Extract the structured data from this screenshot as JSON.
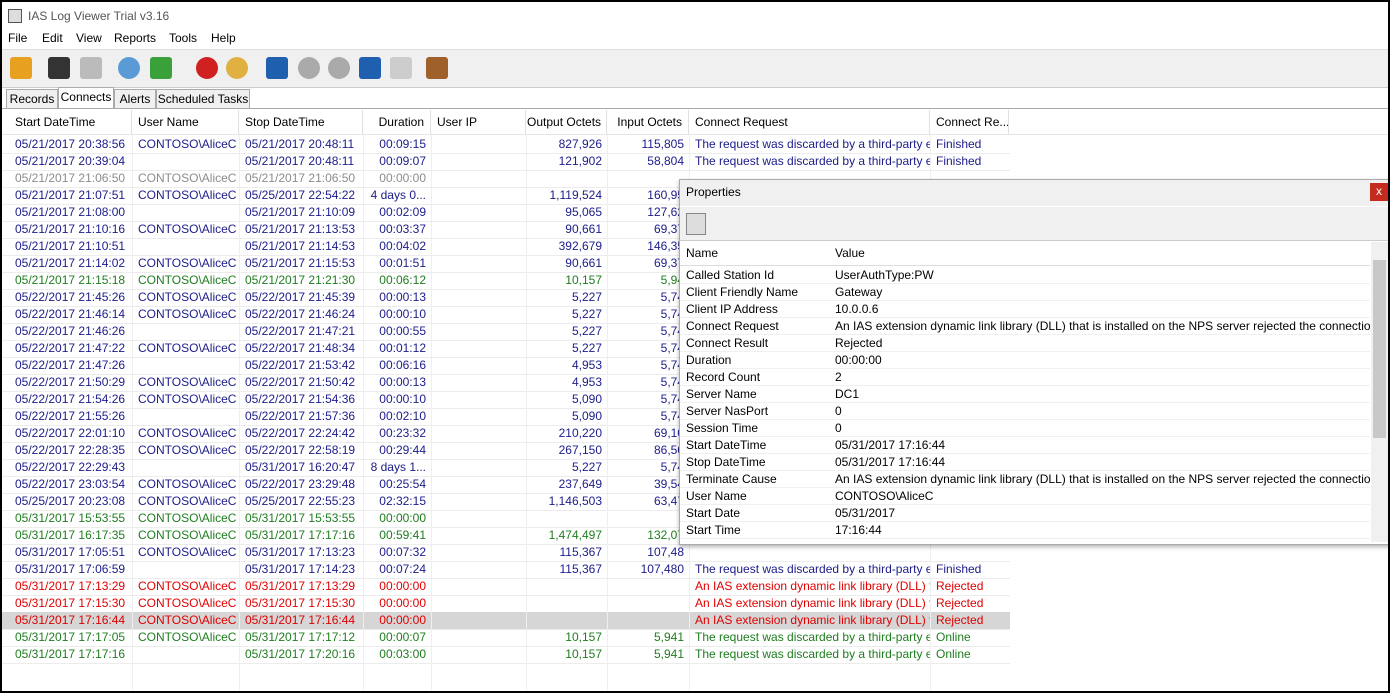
{
  "window": {
    "title": "IAS Log Viewer Trial v3.16"
  },
  "menu": [
    "File",
    "Edit",
    "View",
    "Reports",
    "Tools",
    "Help"
  ],
  "tabs": [
    "Records",
    "Connects",
    "Alerts",
    "Scheduled Tasks"
  ],
  "active_tab": 1,
  "table": {
    "columns": [
      "Start DateTime",
      "User Name",
      "Stop DateTime",
      "Duration",
      "User IP",
      "Output Octets",
      "Input Octets",
      "Connect Request",
      "Connect Re..."
    ],
    "rows": [
      {
        "color": "#1c1c8a",
        "start": "05/21/2017 20:38:56",
        "user": "CONTOSO\\AliceC",
        "stop": "05/21/2017 20:48:11",
        "duration": "00:09:15",
        "output": "827,926",
        "input": "115,805",
        "request": "The request was discarded by a third-party ext...",
        "result": "Finished"
      },
      {
        "color": "#1c1c8a",
        "start": "05/21/2017 20:39:04",
        "stop": "05/21/2017 20:48:11",
        "duration": "00:09:07",
        "output": "121,902",
        "input": "58,804",
        "request": "The request was discarded by a third-party ext...",
        "result": "Finished"
      },
      {
        "color": "#8c8c8c",
        "start": "05/21/2017 21:06:50",
        "user": "CONTOSO\\AliceC",
        "stop": "05/21/2017 21:06:50",
        "duration": "00:00:00"
      },
      {
        "color": "#1c1c8a",
        "start": "05/21/2017 21:07:51",
        "user": "CONTOSO\\AliceC",
        "stop": "05/25/2017 22:54:22",
        "duration": "4 days 0...",
        "output": "1,119,524",
        "input": "160,95"
      },
      {
        "color": "#1c1c8a",
        "start": "05/21/2017 21:08:00",
        "stop": "05/21/2017 21:10:09",
        "duration": "00:02:09",
        "output": "95,065",
        "input": "127,62"
      },
      {
        "color": "#1c1c8a",
        "start": "05/21/2017 21:10:16",
        "user": "CONTOSO\\AliceC",
        "stop": "05/21/2017 21:13:53",
        "duration": "00:03:37",
        "output": "90,661",
        "input": "69,37"
      },
      {
        "color": "#1c1c8a",
        "start": "05/21/2017 21:10:51",
        "stop": "05/21/2017 21:14:53",
        "duration": "00:04:02",
        "output": "392,679",
        "input": "146,35"
      },
      {
        "color": "#1c1c8a",
        "start": "05/21/2017 21:14:02",
        "user": "CONTOSO\\AliceC",
        "stop": "05/21/2017 21:15:53",
        "duration": "00:01:51",
        "output": "90,661",
        "input": "69,37"
      },
      {
        "color": "#1f7d1f",
        "start": "05/21/2017 21:15:18",
        "user": "CONTOSO\\AliceC",
        "stop": "05/21/2017 21:21:30",
        "duration": "00:06:12",
        "output": "10,157",
        "input": "5,94"
      },
      {
        "color": "#1c1c8a",
        "start": "05/22/2017 21:45:26",
        "user": "CONTOSO\\AliceC",
        "stop": "05/22/2017 21:45:39",
        "duration": "00:00:13",
        "output": "5,227",
        "input": "5,74"
      },
      {
        "color": "#1c1c8a",
        "start": "05/22/2017 21:46:14",
        "user": "CONTOSO\\AliceC",
        "stop": "05/22/2017 21:46:24",
        "duration": "00:00:10",
        "output": "5,227",
        "input": "5,74"
      },
      {
        "color": "#1c1c8a",
        "start": "05/22/2017 21:46:26",
        "stop": "05/22/2017 21:47:21",
        "duration": "00:00:55",
        "output": "5,227",
        "input": "5,74"
      },
      {
        "color": "#1c1c8a",
        "start": "05/22/2017 21:47:22",
        "user": "CONTOSO\\AliceC",
        "stop": "05/22/2017 21:48:34",
        "duration": "00:01:12",
        "output": "5,227",
        "input": "5,74"
      },
      {
        "color": "#1c1c8a",
        "start": "05/22/2017 21:47:26",
        "stop": "05/22/2017 21:53:42",
        "duration": "00:06:16",
        "output": "4,953",
        "input": "5,74"
      },
      {
        "color": "#1c1c8a",
        "start": "05/22/2017 21:50:29",
        "user": "CONTOSO\\AliceC",
        "stop": "05/22/2017 21:50:42",
        "duration": "00:00:13",
        "output": "4,953",
        "input": "5,74"
      },
      {
        "color": "#1c1c8a",
        "start": "05/22/2017 21:54:26",
        "user": "CONTOSO\\AliceC",
        "stop": "05/22/2017 21:54:36",
        "duration": "00:00:10",
        "output": "5,090",
        "input": "5,74"
      },
      {
        "color": "#1c1c8a",
        "start": "05/22/2017 21:55:26",
        "stop": "05/22/2017 21:57:36",
        "duration": "00:02:10",
        "output": "5,090",
        "input": "5,74"
      },
      {
        "color": "#1c1c8a",
        "start": "05/22/2017 22:01:10",
        "user": "CONTOSO\\AliceC",
        "stop": "05/22/2017 22:24:42",
        "duration": "00:23:32",
        "output": "210,220",
        "input": "69,10"
      },
      {
        "color": "#1c1c8a",
        "start": "05/22/2017 22:28:35",
        "user": "CONTOSO\\AliceC",
        "stop": "05/22/2017 22:58:19",
        "duration": "00:29:44",
        "output": "267,150",
        "input": "86,50"
      },
      {
        "color": "#1c1c8a",
        "start": "05/22/2017 22:29:43",
        "stop": "05/31/2017 16:20:47",
        "duration": "8 days 1...",
        "output": "5,227",
        "input": "5,74"
      },
      {
        "color": "#1c1c8a",
        "start": "05/22/2017 23:03:54",
        "user": "CONTOSO\\AliceC",
        "stop": "05/22/2017 23:29:48",
        "duration": "00:25:54",
        "output": "237,649",
        "input": "39,54"
      },
      {
        "color": "#1c1c8a",
        "start": "05/25/2017 20:23:08",
        "user": "CONTOSO\\AliceC",
        "stop": "05/25/2017 22:55:23",
        "duration": "02:32:15",
        "output": "1,146,503",
        "input": "63,47"
      },
      {
        "color": "#1f7d1f",
        "start": "05/31/2017 15:53:55",
        "user": "CONTOSO\\AliceC",
        "stop": "05/31/2017 15:53:55",
        "duration": "00:00:00"
      },
      {
        "color": "#1f7d1f",
        "start": "05/31/2017 16:17:35",
        "user": "CONTOSO\\AliceC",
        "stop": "05/31/2017 17:17:16",
        "duration": "00:59:41",
        "output": "1,474,497",
        "input": "132,07"
      },
      {
        "color": "#1c1c8a",
        "start": "05/31/2017 17:05:51",
        "user": "CONTOSO\\AliceC",
        "stop": "05/31/2017 17:13:23",
        "duration": "00:07:32",
        "output": "115,367",
        "input": "107,48"
      },
      {
        "color": "#1c1c8a",
        "start": "05/31/2017 17:06:59",
        "stop": "05/31/2017 17:14:23",
        "duration": "00:07:24",
        "output": "115,367",
        "input": "107,480",
        "request": "The request was discarded by a third-party ext...",
        "result": "Finished"
      },
      {
        "color": "#e00000",
        "start": "05/31/2017 17:13:29",
        "user": "CONTOSO\\AliceC",
        "stop": "05/31/2017 17:13:29",
        "duration": "00:00:00",
        "request": "An IAS extension dynamic link library (DLL) th...",
        "result": "Rejected"
      },
      {
        "color": "#e00000",
        "start": "05/31/2017 17:15:30",
        "user": "CONTOSO\\AliceC",
        "stop": "05/31/2017 17:15:30",
        "duration": "00:00:00",
        "request": "An IAS extension dynamic link library (DLL) th...",
        "result": "Rejected"
      },
      {
        "color": "#e00000",
        "selected": true,
        "start": "05/31/2017 17:16:44",
        "user": "CONTOSO\\AliceC",
        "stop": "05/31/2017 17:16:44",
        "duration": "00:00:00",
        "request": "An IAS extension dynamic link library (DLL) th...",
        "result": "Rejected"
      },
      {
        "color": "#1f7d1f",
        "start": "05/31/2017 17:17:05",
        "user": "CONTOSO\\AliceC",
        "stop": "05/31/2017 17:17:12",
        "duration": "00:00:07",
        "output": "10,157",
        "input": "5,941",
        "request": "The request was discarded by a third-party ext...",
        "result": "Online"
      },
      {
        "color": "#1f7d1f",
        "start": "05/31/2017 17:17:16",
        "stop": "05/31/2017 17:20:16",
        "duration": "00:03:00",
        "output": "10,157",
        "input": "5,941",
        "request": "The request was discarded by a third-party ext...",
        "result": "Online"
      }
    ]
  },
  "properties": {
    "title": "Properties",
    "close": "x",
    "header": [
      "Name",
      "Value"
    ],
    "rows": [
      [
        "Called Station Id",
        "UserAuthType:PW"
      ],
      [
        "Client Friendly Name",
        "Gateway"
      ],
      [
        "Client IP Address",
        "10.0.0.6"
      ],
      [
        "Connect Request",
        "An IAS extension dynamic link library (DLL) that is installed on the NPS server rejected the connection request."
      ],
      [
        "Connect Result",
        "Rejected"
      ],
      [
        "Duration",
        "00:00:00"
      ],
      [
        "Record Count",
        "2"
      ],
      [
        "Server Name",
        "DC1"
      ],
      [
        "Server NasPort",
        "0"
      ],
      [
        "Session Time",
        "0"
      ],
      [
        "Start DateTime",
        "05/31/2017 17:16:44"
      ],
      [
        "Stop DateTime",
        "05/31/2017 17:16:44"
      ],
      [
        "Terminate Cause",
        "An IAS extension dynamic link library (DLL) that is installed on the NPS server rejected the connection request."
      ],
      [
        "User Name",
        "CONTOSO\\AliceC"
      ],
      [
        "Start Date",
        "05/31/2017"
      ],
      [
        "Start Time",
        "17:16:44"
      ]
    ]
  }
}
